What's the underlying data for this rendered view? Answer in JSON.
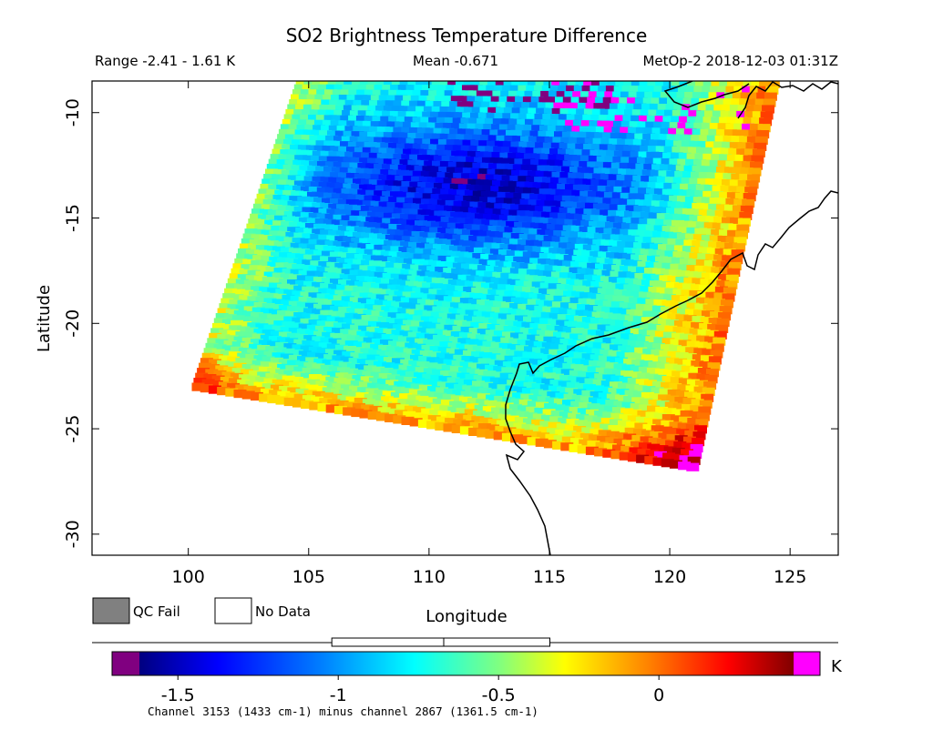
{
  "chart_data": {
    "type": "heatmap",
    "title": "SO2 Brightness Temperature Difference",
    "range_text": "Range -2.41 - 1.61 K",
    "mean_text": "Mean -0.671",
    "satellite_text": "MetOp-2 2018-12-03 01:31Z",
    "xlabel": "Longitude",
    "ylabel": "Latitude",
    "xlim": [
      96,
      127
    ],
    "ylim": [
      -31,
      -8.5
    ],
    "x_ticks": [
      100,
      105,
      110,
      115,
      120,
      125
    ],
    "x_tick_labels": [
      "100",
      "105",
      "110",
      "115",
      "120",
      "125"
    ],
    "y_ticks": [
      -10,
      -15,
      -20,
      -25,
      -30
    ],
    "y_tick_labels": [
      "-10",
      "-15",
      "-20",
      "-25",
      "-30"
    ],
    "swath_corners_lonlat": [
      [
        100.2,
        -23.1
      ],
      [
        104.6,
        -8.5
      ],
      [
        124.5,
        -8.5
      ],
      [
        121.1,
        -27.0
      ]
    ],
    "legend": [
      {
        "label": "QC Fail",
        "color": "#808080"
      },
      {
        "label": "No Data",
        "color": "#ffffff"
      }
    ],
    "colorbar": {
      "min": -1.62,
      "max": 0.42,
      "ticks": [
        -1.5,
        -1,
        -0.5,
        0
      ],
      "tick_labels": [
        "-1.5",
        "-1",
        "-0.5",
        "0"
      ],
      "unit_label": "K",
      "under_color": "#800080",
      "over_color": "#ff00ff",
      "colors": [
        "#000080",
        "#0000ff",
        "#0080ff",
        "#00ffff",
        "#80ff80",
        "#ffff00",
        "#ff8000",
        "#ff0000",
        "#800000"
      ],
      "range_box": [
        -1.02,
        -0.34
      ],
      "mean_marker": -0.671
    },
    "caption": "Channel 3153 (1433 cm-1) minus channel 2867 (1361.5 cm-1)"
  }
}
